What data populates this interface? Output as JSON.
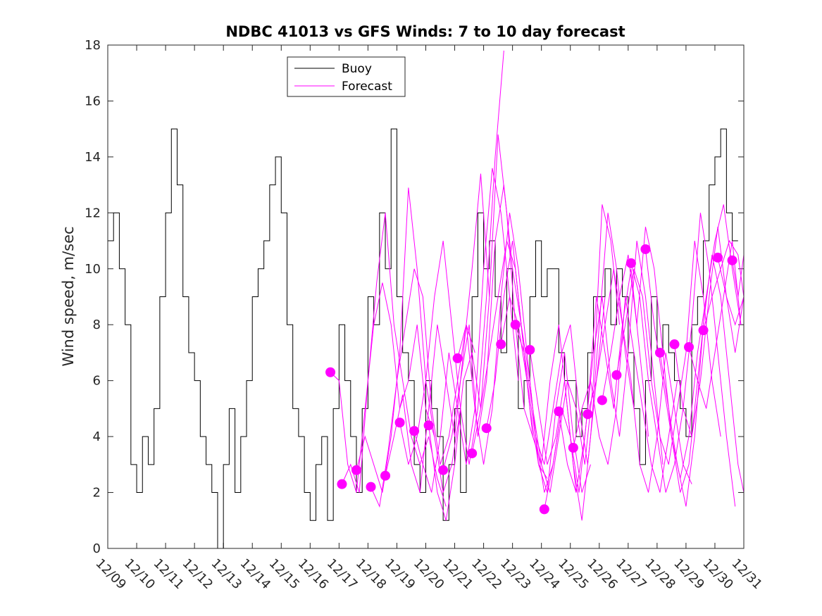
{
  "chart_data": {
    "type": "line",
    "title": "NDBC 41013 vs GFS Winds: 7 to 10 day forecast",
    "xlabel": "",
    "ylabel": "Wind speed, m/sec",
    "xlim": [
      9,
      31
    ],
    "ylim": [
      0,
      18
    ],
    "yticks": [
      0,
      2,
      4,
      6,
      8,
      10,
      12,
      14,
      16,
      18
    ],
    "categories": [
      "12/09",
      "12/10",
      "12/11",
      "12/12",
      "12/13",
      "12/14",
      "12/15",
      "12/16",
      "12/17",
      "12/18",
      "12/19",
      "12/20",
      "12/21",
      "12/22",
      "12/23",
      "12/24",
      "12/25",
      "12/26",
      "12/27",
      "12/28",
      "12/29",
      "12/30",
      "12/31"
    ],
    "legend": {
      "position": "top-center",
      "entries": [
        "Buoy",
        "Forecast"
      ]
    },
    "colors": {
      "buoy": "#000000",
      "forecast": "#ff00ff"
    },
    "series": [
      {
        "name": "Buoy",
        "x": [
          9.0,
          9.2,
          9.4,
          9.6,
          9.8,
          10.0,
          10.2,
          10.4,
          10.6,
          10.8,
          11.0,
          11.2,
          11.4,
          11.6,
          11.8,
          12.0,
          12.2,
          12.4,
          12.6,
          12.8,
          13.0,
          13.2,
          13.4,
          13.6,
          13.8,
          14.0,
          14.2,
          14.4,
          14.6,
          14.8,
          15.0,
          15.2,
          15.4,
          15.6,
          15.8,
          16.0,
          16.2,
          16.4,
          16.6,
          16.8,
          17.0,
          17.2,
          17.4,
          17.6,
          17.8,
          18.0,
          18.2,
          18.4,
          18.6,
          18.8,
          19.0,
          19.2,
          19.4,
          19.6,
          19.8,
          20.0,
          20.2,
          20.4,
          20.6,
          20.8,
          21.0,
          21.2,
          21.4,
          21.6,
          21.8,
          22.0,
          22.2,
          22.4,
          22.6,
          22.8,
          23.0,
          23.2,
          23.4,
          23.6,
          23.8,
          24.0,
          24.2,
          24.4,
          24.6,
          24.8,
          25.0,
          25.2,
          25.4,
          25.6,
          25.8,
          26.0,
          26.2,
          26.4,
          26.6,
          26.8,
          27.0,
          27.2,
          27.4,
          27.6,
          27.8,
          28.0,
          28.2,
          28.4,
          28.6,
          28.8,
          29.0,
          29.2,
          29.4,
          29.6,
          29.8,
          30.0,
          30.2,
          30.4,
          30.6
        ],
        "values": [
          11,
          12,
          10,
          8,
          3,
          2,
          4,
          3,
          5,
          9,
          12,
          15,
          13,
          9,
          7,
          6,
          4,
          3,
          2,
          0,
          3,
          5,
          2,
          4,
          6,
          9,
          10,
          11,
          13,
          14,
          12,
          8,
          5,
          4,
          2,
          1,
          3,
          4,
          1,
          5,
          8,
          6,
          4,
          2,
          5,
          9,
          8,
          12,
          10,
          15,
          9,
          7,
          6,
          3,
          2,
          6,
          5,
          4,
          1,
          3,
          5,
          2,
          6,
          9,
          12,
          10,
          11,
          9,
          7,
          10,
          8,
          5,
          6,
          9,
          11,
          9,
          10,
          10,
          7,
          6,
          6,
          4,
          5,
          7,
          9,
          9,
          10,
          8,
          10,
          9,
          7,
          5,
          3,
          6,
          9,
          7,
          8,
          7,
          6,
          5,
          4,
          8,
          9,
          11,
          13,
          14,
          15,
          12,
          11
        ]
      },
      {
        "name": "Forecast 1",
        "x": [
          16.7,
          17.0,
          17.3,
          17.6,
          17.9,
          18.2,
          18.5,
          18.8,
          19.1,
          19.4,
          19.7,
          20.0,
          20.3
        ],
        "values": [
          6.3,
          6.0,
          3.0,
          2.0,
          5.0,
          8.0,
          9.5,
          8.0,
          5.0,
          6.0,
          8.0,
          5.0,
          4.0
        ]
      },
      {
        "name": "Forecast 2",
        "x": [
          17.1,
          17.4,
          17.7,
          18.0,
          18.3,
          18.6,
          18.9,
          19.2,
          19.5,
          19.8,
          20.1,
          20.4,
          20.7
        ],
        "values": [
          2.3,
          3.0,
          2.0,
          6.0,
          9.5,
          12.0,
          8.0,
          6.0,
          4.0,
          3.0,
          4.0,
          2.5,
          1.5
        ]
      },
      {
        "name": "Forecast 3",
        "x": [
          17.6,
          17.9,
          18.2,
          18.5,
          18.8,
          19.1,
          19.4,
          19.7,
          20.0,
          20.3,
          20.6,
          20.9,
          21.2
        ],
        "values": [
          2.8,
          4.0,
          3.0,
          2.0,
          4.0,
          7.0,
          12.9,
          10.0,
          6.0,
          4.0,
          2.0,
          3.0,
          5.0
        ]
      },
      {
        "name": "Forecast 4",
        "x": [
          18.1,
          18.4,
          18.7,
          19.0,
          19.3,
          19.6,
          19.9,
          20.2,
          20.5,
          20.8,
          21.1,
          21.4,
          21.7
        ],
        "values": [
          2.2,
          1.5,
          3.5,
          6.0,
          8.0,
          10.0,
          9.0,
          5.0,
          3.0,
          4.0,
          6.0,
          8.0,
          7.0
        ]
      },
      {
        "name": "Forecast 5",
        "x": [
          18.6,
          18.9,
          19.2,
          19.5,
          19.8,
          20.1,
          20.4,
          20.7,
          21.0,
          21.3,
          21.6,
          21.9,
          22.2
        ],
        "values": [
          2.6,
          4.0,
          5.5,
          3.0,
          2.0,
          5.0,
          8.0,
          6.0,
          4.0,
          7.0,
          10.0,
          13.4,
          9.0
        ]
      },
      {
        "name": "Forecast 6",
        "x": [
          19.1,
          19.4,
          19.7,
          20.0,
          20.3,
          20.6,
          20.9,
          21.2,
          21.5,
          21.8,
          22.1,
          22.4,
          22.7
        ],
        "values": [
          4.5,
          3.0,
          4.0,
          6.0,
          9.0,
          11.0,
          8.0,
          5.0,
          3.0,
          5.0,
          9.0,
          14.0,
          17.8
        ]
      },
      {
        "name": "Forecast 7",
        "x": [
          19.6,
          19.9,
          20.2,
          20.5,
          20.8,
          21.1,
          21.4,
          21.7,
          22.0,
          22.3,
          22.6,
          22.9,
          23.2
        ],
        "values": [
          4.2,
          3.0,
          2.0,
          4.0,
          7.0,
          5.0,
          3.0,
          5.0,
          10.0,
          13.6,
          12.0,
          9.0,
          6.0
        ]
      },
      {
        "name": "Forecast 8",
        "x": [
          20.1,
          20.4,
          20.7,
          21.0,
          21.3,
          21.6,
          21.9,
          22.2,
          22.5,
          22.8,
          23.1,
          23.4,
          23.7
        ],
        "values": [
          4.4,
          2.0,
          1.0,
          3.0,
          6.0,
          7.0,
          5.0,
          9.0,
          14.8,
          12.0,
          8.0,
          5.0,
          4.0
        ]
      },
      {
        "name": "Forecast 9",
        "x": [
          20.6,
          20.9,
          21.2,
          21.5,
          21.8,
          22.1,
          22.4,
          22.7,
          23.0,
          23.3,
          23.6,
          23.9,
          24.2
        ],
        "values": [
          2.8,
          4.0,
          6.0,
          8.0,
          4.0,
          6.0,
          11.0,
          13.0,
          10.0,
          8.0,
          5.0,
          3.0,
          2.5
        ]
      },
      {
        "name": "Forecast 10",
        "x": [
          21.1,
          21.4,
          21.7,
          22.0,
          22.3,
          22.6,
          22.9,
          23.2,
          23.5,
          23.8,
          24.1,
          24.4,
          24.7
        ],
        "values": [
          6.8,
          8.0,
          5.0,
          3.0,
          5.0,
          9.0,
          12.0,
          10.0,
          7.0,
          4.0,
          2.0,
          3.0,
          5.0
        ]
      },
      {
        "name": "Forecast 11",
        "x": [
          21.6,
          21.9,
          22.2,
          22.5,
          22.8,
          23.1,
          23.4,
          23.7,
          24.0,
          24.3,
          24.6,
          24.9,
          25.2
        ],
        "values": [
          3.4,
          5.0,
          7.0,
          9.0,
          11.0,
          10.0,
          7.0,
          4.0,
          3.0,
          6.0,
          8.0,
          5.0,
          2.0
        ]
      },
      {
        "name": "Forecast 12",
        "x": [
          22.1,
          22.4,
          22.7,
          23.0,
          23.3,
          23.6,
          23.9,
          24.2,
          24.5,
          24.8,
          25.1,
          25.4,
          25.7
        ],
        "values": [
          4.3,
          6.0,
          9.0,
          11.0,
          8.0,
          6.0,
          3.0,
          2.0,
          5.0,
          7.0,
          4.0,
          2.0,
          3.0
        ]
      },
      {
        "name": "Forecast 13",
        "x": [
          22.6,
          22.9,
          23.2,
          23.5,
          23.8,
          24.1,
          24.4,
          24.7,
          25.0,
          25.3,
          25.6,
          25.9,
          26.2
        ],
        "values": [
          7.3,
          9.0,
          8.0,
          6.0,
          4.0,
          3.0,
          5.0,
          7.0,
          8.0,
          5.0,
          3.0,
          6.0,
          9.0
        ]
      },
      {
        "name": "Forecast 14",
        "x": [
          23.1,
          23.4,
          23.7,
          24.0,
          24.3,
          24.6,
          24.9,
          25.2,
          25.5,
          25.8,
          26.1,
          26.4,
          26.7
        ],
        "values": [
          8.0,
          7.0,
          5.0,
          3.0,
          2.0,
          4.0,
          6.0,
          5.0,
          3.0,
          6.0,
          12.3,
          11.0,
          8.0
        ]
      },
      {
        "name": "Forecast 15",
        "x": [
          23.6,
          23.9,
          24.2,
          24.5,
          24.8,
          25.1,
          25.4,
          25.7,
          26.0,
          26.3,
          26.6,
          26.9,
          27.2
        ],
        "values": [
          7.1,
          5.0,
          3.0,
          4.0,
          6.0,
          3.0,
          1.0,
          4.0,
          8.0,
          12.0,
          10.0,
          7.0,
          5.0
        ]
      },
      {
        "name": "Forecast 16",
        "x": [
          24.1,
          24.4,
          24.7,
          25.0,
          25.3,
          25.6,
          25.9,
          26.2,
          26.5,
          26.8,
          27.1,
          27.4,
          27.7
        ],
        "values": [
          1.4,
          3.0,
          5.0,
          4.0,
          2.0,
          5.0,
          9.0,
          7.0,
          5.0,
          8.0,
          10.0,
          7.0,
          4.0
        ]
      },
      {
        "name": "Forecast 17",
        "x": [
          24.6,
          24.9,
          25.2,
          25.5,
          25.8,
          26.1,
          26.4,
          26.7,
          27.0,
          27.3,
          27.6,
          27.9,
          28.2
        ],
        "values": [
          4.9,
          3.0,
          2.0,
          4.0,
          7.0,
          9.0,
          6.0,
          4.0,
          7.0,
          11.0,
          9.0,
          6.0,
          3.0
        ]
      },
      {
        "name": "Forecast 18",
        "x": [
          25.1,
          25.4,
          25.7,
          26.0,
          26.3,
          26.6,
          26.9,
          27.2,
          27.5,
          27.8,
          28.1,
          28.4,
          28.7
        ],
        "values": [
          3.6,
          5.0,
          6.0,
          4.0,
          3.0,
          5.0,
          9.0,
          7.0,
          5.0,
          3.0,
          2.0,
          4.0,
          6.0
        ]
      },
      {
        "name": "Forecast 19",
        "x": [
          25.6,
          25.9,
          26.2,
          26.5,
          26.8,
          27.1,
          27.4,
          27.7,
          28.0,
          28.3,
          28.6,
          28.9,
          29.2
        ],
        "values": [
          4.8,
          6.0,
          8.0,
          10.0,
          8.0,
          6.0,
          3.0,
          2.0,
          4.0,
          7.0,
          5.0,
          3.0,
          2.3
        ]
      },
      {
        "name": "Forecast 20",
        "x": [
          26.1,
          26.4,
          26.7,
          27.0,
          27.3,
          27.6,
          27.9,
          28.2,
          28.5,
          28.8,
          29.1,
          29.4,
          29.7
        ],
        "values": [
          5.3,
          7.0,
          9.0,
          10.5,
          8.0,
          11.5,
          10.0,
          7.0,
          4.0,
          2.0,
          3.0,
          6.0,
          9.0
        ]
      },
      {
        "name": "Forecast 21",
        "x": [
          26.6,
          26.9,
          27.2,
          27.5,
          27.8,
          28.1,
          28.4,
          28.7,
          29.0,
          29.3,
          29.6,
          29.9,
          30.2
        ],
        "values": [
          6.2,
          8.0,
          10.0,
          9.0,
          6.0,
          4.0,
          3.0,
          5.0,
          7.0,
          11.0,
          9.0,
          6.0,
          4.0
        ]
      },
      {
        "name": "Forecast 22",
        "x": [
          27.1,
          27.4,
          27.7,
          28.0,
          28.3,
          28.6,
          28.9,
          29.2,
          29.5,
          29.8,
          30.1,
          30.4,
          30.7
        ],
        "values": [
          10.2,
          9.0,
          6.0,
          4.0,
          2.0,
          3.0,
          5.0,
          8.0,
          12.0,
          10.0,
          7.0,
          4.0,
          1.5
        ]
      },
      {
        "name": "Forecast 23",
        "x": [
          27.6,
          27.9,
          28.2,
          28.5,
          28.8,
          29.1,
          29.4,
          29.7,
          30.0,
          30.3,
          30.6,
          30.9
        ],
        "values": [
          10.7,
          8.0,
          6.0,
          4.0,
          2.5,
          4.0,
          7.0,
          9.0,
          11.0,
          12.3,
          10.0,
          8.0
        ]
      },
      {
        "name": "Forecast 24",
        "x": [
          28.1,
          28.4,
          28.7,
          29.0,
          29.3,
          29.6,
          29.9,
          30.2,
          30.5,
          30.8,
          31.0
        ],
        "values": [
          7.0,
          5.0,
          3.0,
          1.5,
          4.0,
          8.0,
          10.5,
          9.0,
          6.0,
          3.0,
          2.0
        ]
      },
      {
        "name": "Forecast 25",
        "x": [
          28.6,
          28.9,
          29.2,
          29.5,
          29.8,
          30.1,
          30.4,
          30.7,
          31.0
        ],
        "values": [
          7.3,
          5.0,
          4.0,
          6.0,
          9.0,
          11.5,
          9.0,
          7.0,
          9.0
        ]
      },
      {
        "name": "Forecast 26",
        "x": [
          29.1,
          29.4,
          29.7,
          30.0,
          30.3,
          30.6,
          30.9
        ],
        "values": [
          7.2,
          6.0,
          5.0,
          7.0,
          9.0,
          11.0,
          8.0
        ]
      },
      {
        "name": "Forecast 27",
        "x": [
          29.6,
          29.9,
          30.2,
          30.5,
          30.8,
          31.0
        ],
        "values": [
          7.8,
          9.0,
          10.0,
          11.0,
          10.5,
          9.0
        ]
      },
      {
        "name": "Forecast 28",
        "x": [
          30.1,
          30.4,
          30.7,
          31.0
        ],
        "values": [
          10.4,
          9.0,
          8.0,
          9.0
        ]
      },
      {
        "name": "Forecast 29",
        "x": [
          30.6,
          30.8,
          31.0
        ],
        "values": [
          10.3,
          9.0,
          10.5
        ]
      }
    ],
    "markers": {
      "name": "Forecast start",
      "x": [
        16.7,
        17.1,
        17.6,
        18.1,
        18.6,
        19.1,
        19.6,
        20.1,
        20.6,
        21.1,
        21.6,
        22.1,
        22.6,
        23.1,
        23.6,
        24.1,
        24.6,
        25.1,
        25.6,
        26.1,
        26.6,
        27.1,
        27.6,
        28.1,
        28.6,
        29.1,
        29.6,
        30.1,
        30.6
      ],
      "values": [
        6.3,
        2.3,
        2.8,
        2.2,
        2.6,
        4.5,
        4.2,
        4.4,
        2.8,
        6.8,
        3.4,
        4.3,
        7.3,
        8.0,
        7.1,
        1.4,
        4.9,
        3.6,
        4.8,
        5.3,
        6.2,
        10.2,
        10.7,
        7.0,
        7.3,
        7.2,
        7.8,
        10.4,
        10.3
      ]
    }
  }
}
